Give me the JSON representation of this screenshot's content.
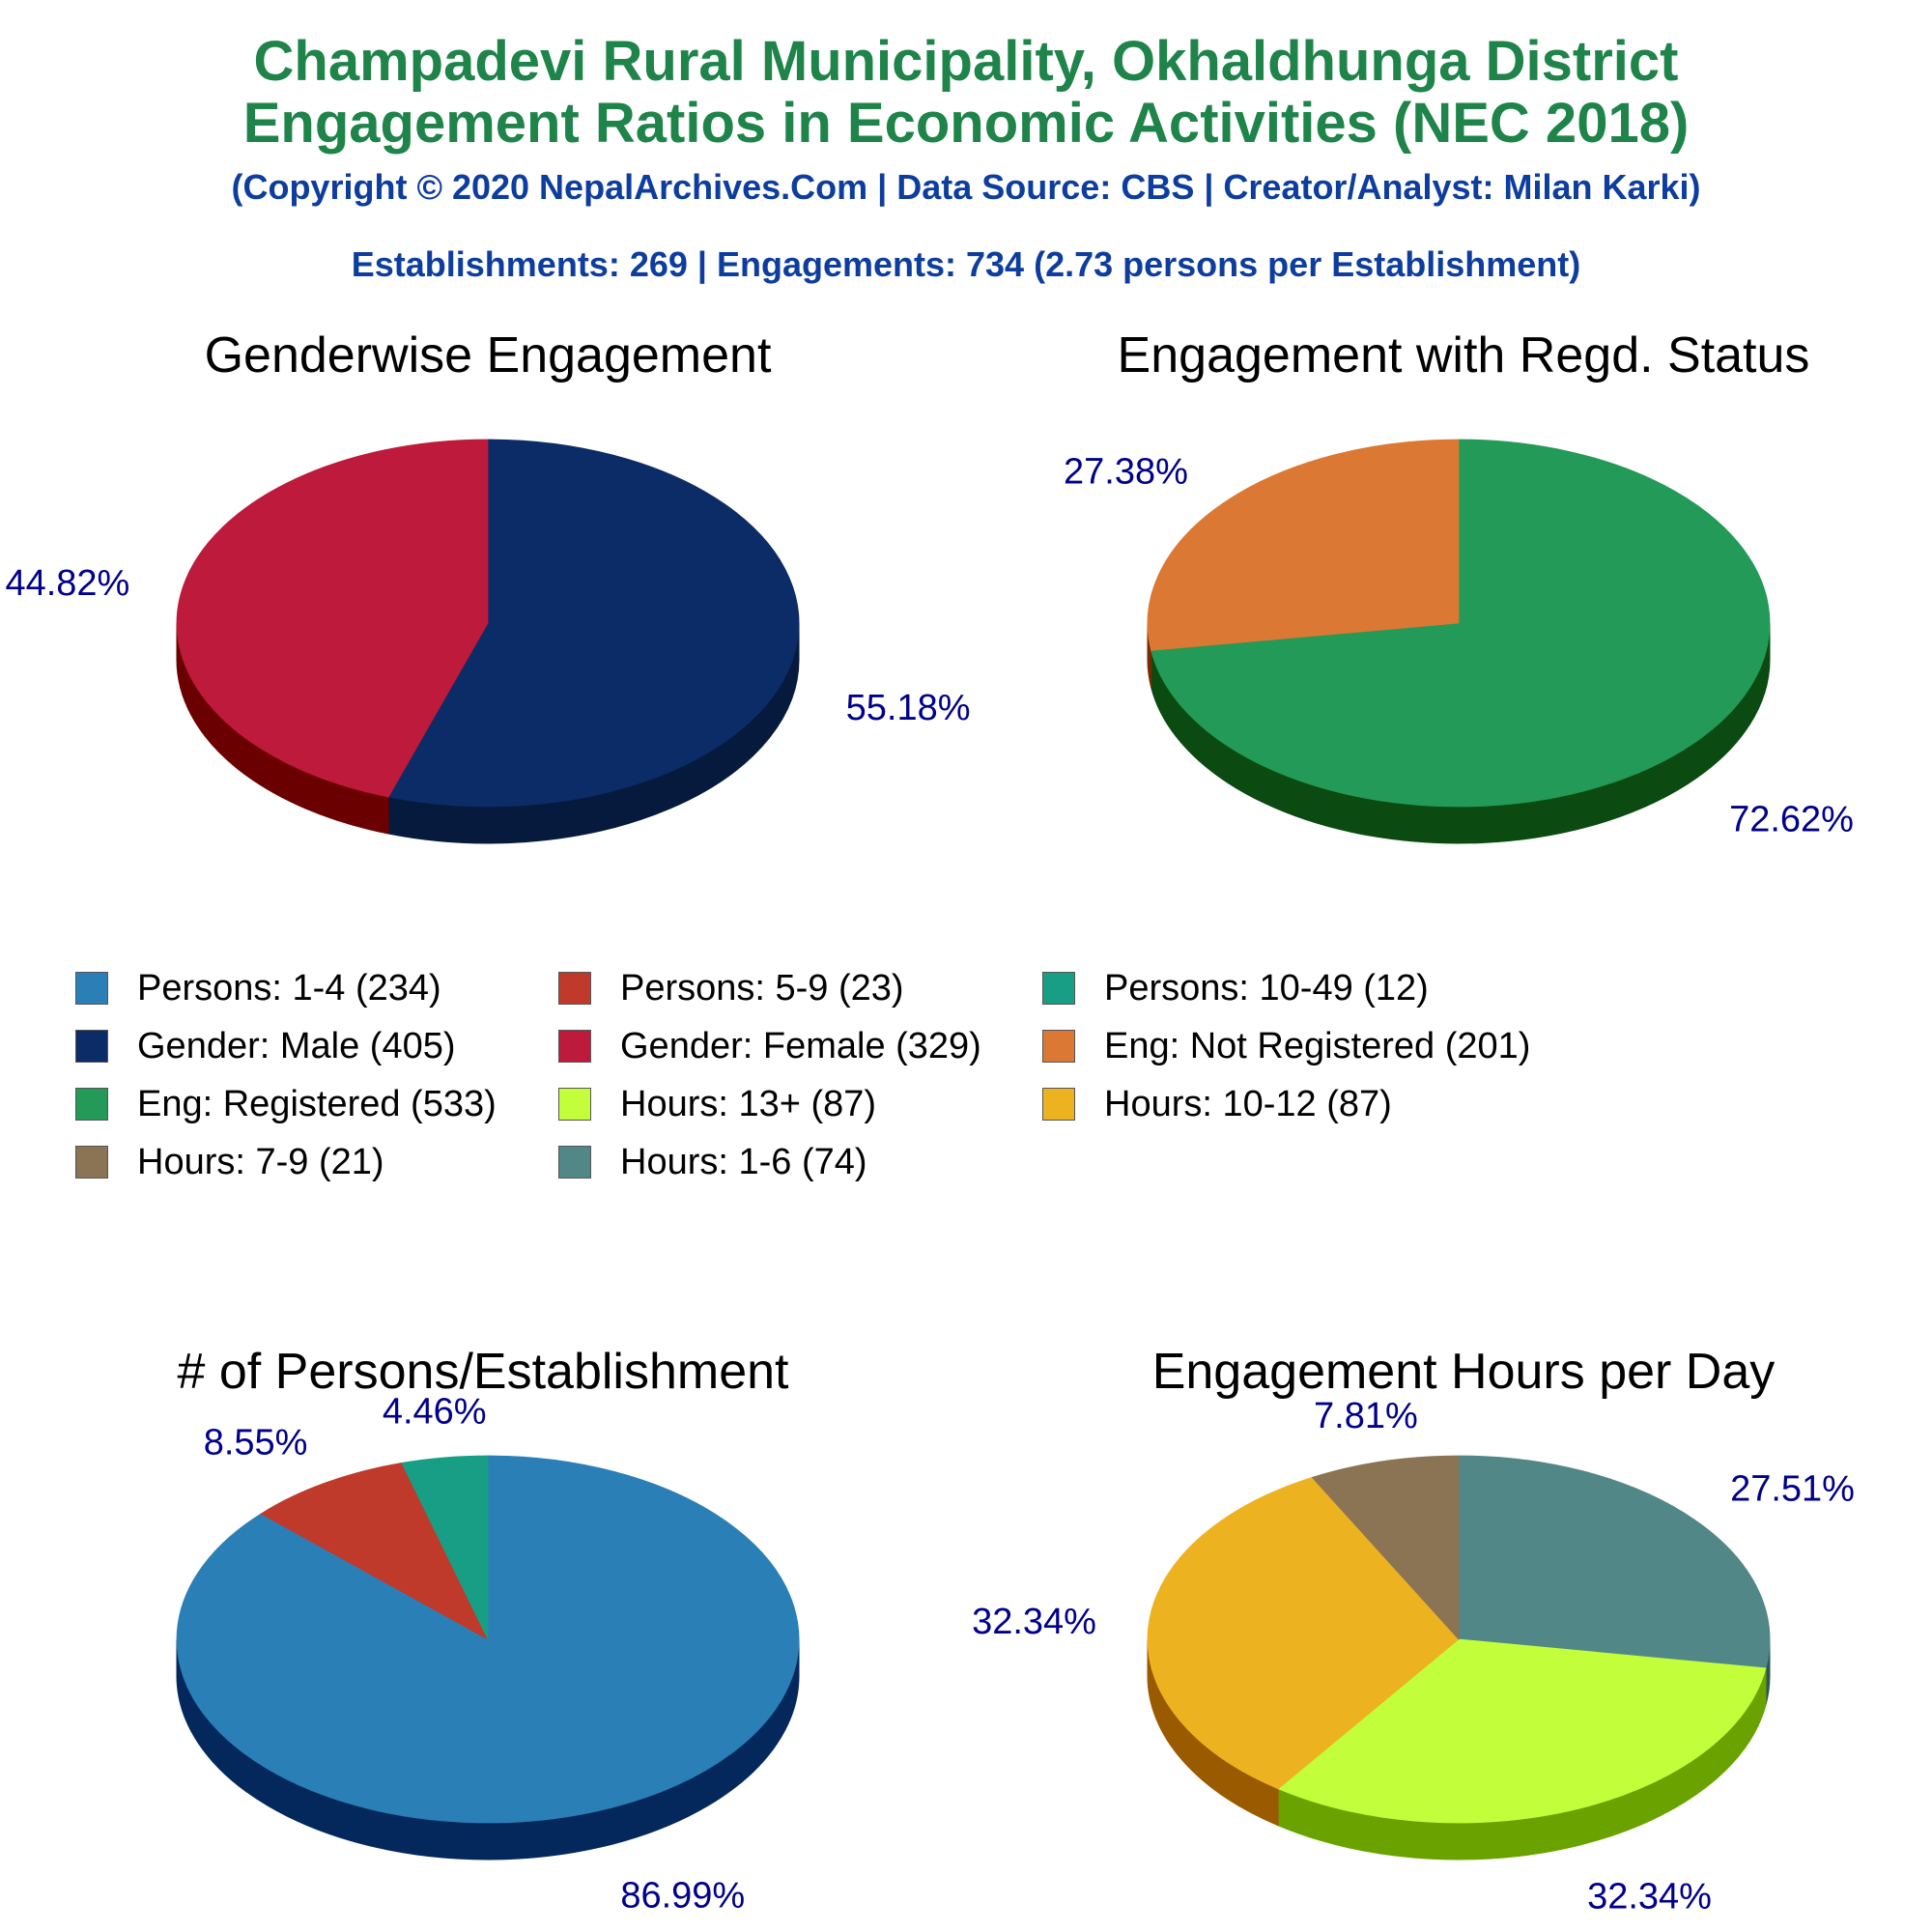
{
  "header": {
    "title_line1": "Champadevi Rural Municipality, Okhaldhunga District",
    "title_line2": "Engagement Ratios in Economic Activities (NEC 2018)",
    "copyright": "(Copyright © 2020 NepalArchives.Com | Data Source: CBS | Creator/Analyst: Milan Karki)",
    "summary": "Establishments: 269 | Engagements: 734 (2.73 persons per Establishment)"
  },
  "chart_data": [
    {
      "type": "pie",
      "title": "Genderwise Engagement",
      "slices": [
        {
          "label": "Gender: Male",
          "value": 405,
          "percent_label": "55.18%",
          "color": "#0b2c66",
          "side": "#061a3d"
        },
        {
          "label": "Gender: Female",
          "value": 329,
          "percent_label": "44.82%",
          "color": "#be1a3c",
          "side": "#6b0000"
        }
      ]
    },
    {
      "type": "pie",
      "title": "Engagement with Regd. Status",
      "slices": [
        {
          "label": "Eng: Registered",
          "value": 533,
          "percent_label": "72.62%",
          "color": "#239a57",
          "side": "#0b4a10"
        },
        {
          "label": "Eng: Not Registered",
          "value": 201,
          "percent_label": "27.38%",
          "color": "#db7834",
          "side": "#7a2a00"
        }
      ]
    },
    {
      "type": "pie",
      "title": "# of Persons/Establishment",
      "slices": [
        {
          "label": "Persons: 1-4",
          "value": 234,
          "percent_label": "86.99%",
          "color": "#2a7fb7",
          "side": "#05285c"
        },
        {
          "label": "Persons: 5-9",
          "value": 23,
          "percent_label": "8.55%",
          "color": "#c03a2b",
          "side": "#700000"
        },
        {
          "label": "Persons: 10-49",
          "value": 12,
          "percent_label": "4.46%",
          "color": "#179e84",
          "side": "#0b4a3a"
        }
      ]
    },
    {
      "type": "pie",
      "title": "Engagement Hours per Day",
      "slices": [
        {
          "label": "Hours: 1-6",
          "value": 74,
          "percent_label": "27.51%",
          "color": "#528787",
          "side": "#2c5555"
        },
        {
          "label": "Hours: 13+",
          "value": 87,
          "percent_label": "32.34%",
          "color": "#c2ff3a",
          "side": "#6aa300"
        },
        {
          "label": "Hours: 10-12",
          "value": 87,
          "percent_label": "32.34%",
          "color": "#edb220",
          "side": "#9a5a00"
        },
        {
          "label": "Hours: 7-9",
          "value": 21,
          "percent_label": "7.81%",
          "color": "#8b7454",
          "side": "#5a4530"
        }
      ]
    }
  ],
  "legend": {
    "items": [
      {
        "label": "Persons: 1-4 (234)",
        "color": "#2a7fb7"
      },
      {
        "label": "Persons: 5-9 (23)",
        "color": "#c03a2b"
      },
      {
        "label": "Persons: 10-49 (12)",
        "color": "#179e84"
      },
      {
        "label": "Gender: Male (405)",
        "color": "#0b2c66"
      },
      {
        "label": "Gender: Female (329)",
        "color": "#be1a3c"
      },
      {
        "label": "Eng: Not Registered (201)",
        "color": "#db7834"
      },
      {
        "label": "Eng: Registered (533)",
        "color": "#239a57"
      },
      {
        "label": "Hours: 13+ (87)",
        "color": "#c2ff3a"
      },
      {
        "label": "Hours: 10-12 (87)",
        "color": "#edb220"
      },
      {
        "label": "Hours: 7-9 (21)",
        "color": "#8b7454"
      },
      {
        "label": "Hours: 1-6 (74)",
        "color": "#528787"
      }
    ]
  }
}
